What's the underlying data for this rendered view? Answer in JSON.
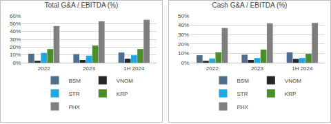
{
  "chart_data": [
    {
      "type": "bar",
      "title": "Total G&A / EBITDA (%)",
      "categories": [
        "2022",
        "2023",
        "1H 2024"
      ],
      "series": [
        {
          "name": "BSM",
          "color": "#4f6d8f",
          "values": [
            11.5,
            11,
            13
          ]
        },
        {
          "name": "VNOM",
          "color": "#262626",
          "values": [
            2.5,
            3.5,
            5
          ]
        },
        {
          "name": "STR",
          "color": "#1ea7e1",
          "values": [
            12.5,
            9,
            9.5
          ]
        },
        {
          "name": "KRP",
          "color": "#4c8c2b",
          "values": [
            17.5,
            22,
            17.5
          ]
        },
        {
          "name": "PHX",
          "color": "#7f7f7f",
          "values": [
            47,
            53,
            55
          ]
        }
      ],
      "ylim": [
        0,
        60
      ],
      "yticks": [
        {
          "value": 0,
          "label": "0%"
        },
        {
          "value": 10,
          "label": "10%"
        },
        {
          "value": 20,
          "label": "20%"
        },
        {
          "value": 30,
          "label": "30%"
        },
        {
          "value": 40,
          "label": "40%"
        },
        {
          "value": 50,
          "label": "50%"
        },
        {
          "value": 60,
          "label": "60%"
        }
      ],
      "grid": true,
      "legend": "bottom"
    },
    {
      "type": "bar",
      "title": "Cash G&A / EBITDA (%)",
      "categories": [
        "2022",
        "2023",
        "1H 2024"
      ],
      "series": [
        {
          "name": "BSM",
          "color": "#4f6d8f",
          "values": [
            8,
            8.5,
            11
          ]
        },
        {
          "name": "VNOM",
          "color": "#262626",
          "values": [
            2,
            3,
            4
          ]
        },
        {
          "name": "STR",
          "color": "#1ea7e1",
          "values": [
            4.5,
            5,
            5
          ]
        },
        {
          "name": "KRP",
          "color": "#4c8c2b",
          "values": [
            11,
            14,
            9.5
          ]
        },
        {
          "name": "PHX",
          "color": "#7f7f7f",
          "values": [
            37,
            42,
            42.5
          ]
        }
      ],
      "ylim": [
        0,
        50
      ],
      "yticks": [
        {
          "value": 0,
          "label": "0%"
        },
        {
          "value": 10,
          "label": "10%"
        },
        {
          "value": 20,
          "label": "20%"
        },
        {
          "value": 30,
          "label": "30%"
        },
        {
          "value": 40,
          "label": "40%"
        },
        {
          "value": 50,
          "label": "50%"
        }
      ],
      "grid": true,
      "legend": "bottom"
    }
  ]
}
